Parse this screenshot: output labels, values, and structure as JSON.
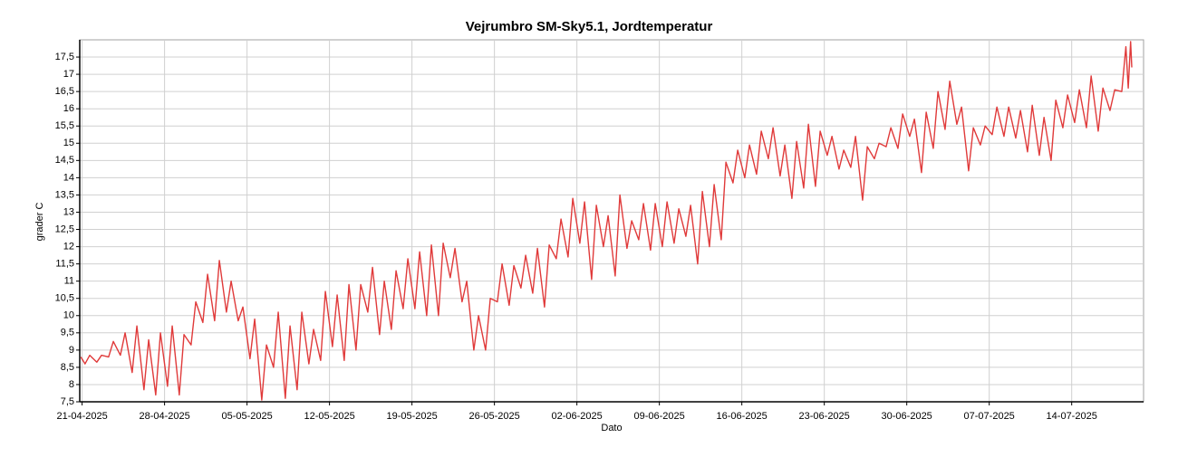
{
  "chart_data": {
    "type": "line",
    "title": "Vejrumbro SM-Sky5.1, Jordtemperatur",
    "ylabel": "grader C",
    "xlabel": "Dato",
    "grid": true,
    "xlim": [
      -0.2,
      90.1
    ],
    "ylim": [
      7.5,
      18
    ],
    "xticks": [
      {
        "value": 0,
        "label": "21-04-2025"
      },
      {
        "value": 7,
        "label": "28-04-2025"
      },
      {
        "value": 14,
        "label": "05-05-2025"
      },
      {
        "value": 21,
        "label": "12-05-2025"
      },
      {
        "value": 28,
        "label": "19-05-2025"
      },
      {
        "value": 35,
        "label": "26-05-2025"
      },
      {
        "value": 42,
        "label": "02-06-2025"
      },
      {
        "value": 49,
        "label": "09-06-2025"
      },
      {
        "value": 56,
        "label": "16-06-2025"
      },
      {
        "value": 63,
        "label": "23-06-2025"
      },
      {
        "value": 70,
        "label": "30-06-2025"
      },
      {
        "value": 77,
        "label": "07-07-2025"
      },
      {
        "value": 84,
        "label": "14-07-2025"
      }
    ],
    "yticks": [
      {
        "value": 7.5,
        "label": "7,5"
      },
      8,
      {
        "value": 8.5,
        "label": "8,5"
      },
      9,
      {
        "value": 9.5,
        "label": "9,5"
      },
      10,
      {
        "value": 10.5,
        "label": "10,5"
      },
      11,
      {
        "value": 11.5,
        "label": "11,5"
      },
      12,
      {
        "value": 12.5,
        "label": "12,5"
      },
      13,
      {
        "value": 13.5,
        "label": "13,5"
      },
      14,
      {
        "value": 14.5,
        "label": "14,5"
      },
      15,
      {
        "value": 15.5,
        "label": "15,5"
      },
      16,
      {
        "value": 16.5,
        "label": "16,5"
      },
      17,
      {
        "value": 17.5,
        "label": "17,5"
      }
    ],
    "x": [
      -0.1,
      0.25,
      0.65,
      1.25,
      1.65,
      2.25,
      2.65,
      3.25,
      3.65,
      4.25,
      4.65,
      5.25,
      5.65,
      6.25,
      6.65,
      7.25,
      7.65,
      8.25,
      8.65,
      9.25,
      9.65,
      10.25,
      10.65,
      11.25,
      11.65,
      12.25,
      12.65,
      13.25,
      13.65,
      14.25,
      14.65,
      15.25,
      15.65,
      16.25,
      16.65,
      17.25,
      17.65,
      18.25,
      18.65,
      19.25,
      19.65,
      20.25,
      20.65,
      21.25,
      21.65,
      22.25,
      22.65,
      23.25,
      23.65,
      24.25,
      24.65,
      25.25,
      25.65,
      26.25,
      26.65,
      27.25,
      27.65,
      28.25,
      28.65,
      29.25,
      29.65,
      30.25,
      30.65,
      31.25,
      31.65,
      32.25,
      32.65,
      33.25,
      33.65,
      34.25,
      34.65,
      35.25,
      35.65,
      36.25,
      36.65,
      37.25,
      37.65,
      38.25,
      38.65,
      39.25,
      39.65,
      40.25,
      40.65,
      41.25,
      41.65,
      42.25,
      42.65,
      43.25,
      43.65,
      44.25,
      44.65,
      45.25,
      45.65,
      46.25,
      46.65,
      47.25,
      47.65,
      48.25,
      48.65,
      49.25,
      49.65,
      50.25,
      50.65,
      51.25,
      51.65,
      52.25,
      52.65,
      53.25,
      53.65,
      54.25,
      54.65,
      55.25,
      55.65,
      56.25,
      56.65,
      57.25,
      57.65,
      58.25,
      58.65,
      59.25,
      59.65,
      60.25,
      60.65,
      61.25,
      61.65,
      62.25,
      62.65,
      63.25,
      63.65,
      64.25,
      64.65,
      65.25,
      65.65,
      66.25,
      66.65,
      67.25,
      67.65,
      68.25,
      68.65,
      69.25,
      69.65,
      70.25,
      70.65,
      71.25,
      71.65,
      72.25,
      72.65,
      73.25,
      73.65,
      74.25,
      74.65,
      75.25,
      75.65,
      76.25,
      76.65,
      77.25,
      77.65,
      78.25,
      78.65,
      79.25,
      79.65,
      80.25,
      80.65,
      81.25,
      81.65,
      82.25,
      82.65,
      83.25,
      83.65,
      84.25,
      84.65,
      85.25,
      85.65,
      86.25,
      86.65,
      87.25,
      87.65,
      88.25,
      88.6,
      88.8,
      89.0,
      89.1
    ],
    "series": [
      {
        "color": "#e03a3a",
        "values": [
          8.8,
          8.6,
          8.85,
          8.65,
          8.85,
          8.8,
          9.25,
          8.85,
          9.5,
          8.35,
          9.7,
          7.85,
          9.3,
          7.7,
          9.5,
          7.95,
          9.7,
          7.7,
          9.45,
          9.15,
          10.4,
          9.8,
          11.2,
          9.85,
          11.6,
          10.1,
          11.0,
          9.85,
          10.25,
          8.75,
          9.9,
          7.55,
          9.15,
          8.5,
          10.1,
          7.6,
          9.7,
          7.85,
          10.1,
          8.6,
          9.6,
          8.7,
          10.7,
          9.1,
          10.6,
          8.7,
          10.9,
          9.0,
          10.9,
          10.1,
          11.4,
          9.45,
          11.0,
          9.6,
          11.3,
          10.2,
          11.65,
          10.2,
          11.85,
          10.0,
          12.05,
          10.0,
          12.1,
          11.1,
          11.95,
          10.4,
          11.0,
          9.0,
          10.0,
          9.0,
          10.5,
          10.4,
          11.5,
          10.3,
          11.45,
          10.8,
          11.75,
          10.65,
          11.95,
          10.25,
          12.05,
          11.65,
          12.8,
          11.7,
          13.4,
          12.1,
          13.3,
          11.05,
          13.2,
          12.0,
          12.9,
          11.15,
          13.5,
          11.95,
          12.75,
          12.2,
          13.25,
          11.9,
          13.25,
          12.0,
          13.3,
          12.1,
          13.1,
          12.3,
          13.2,
          11.5,
          13.6,
          12.0,
          13.8,
          12.2,
          14.45,
          13.85,
          14.8,
          14.0,
          14.95,
          14.1,
          15.35,
          14.55,
          15.45,
          14.05,
          14.95,
          13.4,
          15.05,
          13.7,
          15.55,
          13.75,
          15.35,
          14.65,
          15.2,
          14.25,
          14.8,
          14.3,
          15.2,
          13.35,
          14.9,
          14.55,
          15.0,
          14.9,
          15.45,
          14.85,
          15.85,
          15.2,
          15.7,
          14.15,
          15.9,
          14.85,
          16.5,
          15.4,
          16.8,
          15.55,
          16.05,
          14.2,
          15.45,
          14.95,
          15.5,
          15.25,
          16.05,
          15.2,
          16.05,
          15.15,
          15.95,
          14.75,
          16.1,
          14.65,
          15.75,
          14.5,
          16.25,
          15.45,
          16.4,
          15.6,
          16.55,
          15.45,
          16.95,
          15.35,
          16.6,
          15.95,
          16.55,
          16.5,
          17.8,
          16.6,
          17.95,
          17.2
        ]
      }
    ]
  }
}
